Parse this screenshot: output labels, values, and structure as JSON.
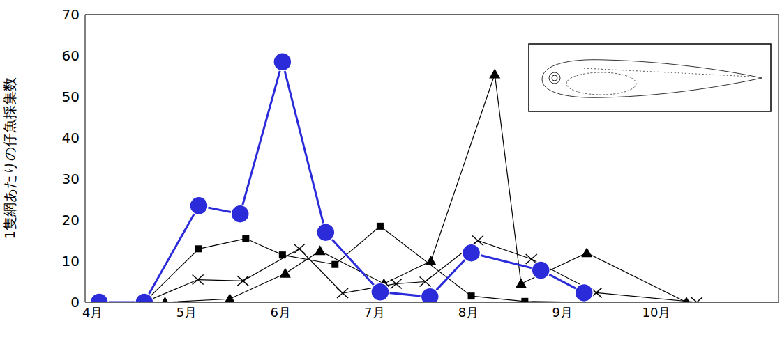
{
  "chart_data": {
    "type": "line",
    "y_label": "1隻網あたりの仔魚採集数",
    "xlim": [
      3.92,
      11.3
    ],
    "xticks": [
      {
        "value": 4,
        "label": "4月"
      },
      {
        "value": 5,
        "label": "5月"
      },
      {
        "value": 6,
        "label": "6月"
      },
      {
        "value": 7,
        "label": "7月"
      },
      {
        "value": 8,
        "label": "8月"
      },
      {
        "value": 9,
        "label": "9月"
      },
      {
        "value": 10,
        "label": "10月"
      }
    ],
    "ylim": [
      0,
      70
    ],
    "yticks": [
      0,
      10,
      20,
      30,
      40,
      50,
      60,
      70
    ],
    "grid": true,
    "series": [
      {
        "color": "#2b2bd9",
        "marker": "circle",
        "x": [
          4.07,
          4.55,
          5.13,
          5.57,
          6.02,
          6.48,
          7.06,
          7.59,
          8.03,
          8.77,
          9.23
        ],
        "values": [
          0,
          0,
          23.5,
          21.5,
          58.5,
          17,
          2.5,
          1.3,
          12,
          7.8,
          2.3
        ]
      },
      {
        "color": "#000000",
        "marker": "square",
        "x": [
          4.55,
          5.13,
          5.63,
          6.02,
          6.58,
          7.06,
          8.03,
          8.6,
          9.23
        ],
        "values": [
          0,
          13,
          15.5,
          11.5,
          9.2,
          18.5,
          1.5,
          0.2,
          0
        ]
      },
      {
        "color": "#000000",
        "marker": "cross",
        "x": [
          4.55,
          5.12,
          5.6,
          6.2,
          6.66,
          7.23,
          7.54,
          8.1,
          8.67,
          9.36,
          10.43
        ],
        "values": [
          0,
          5.5,
          5.2,
          13,
          2.2,
          4.5,
          5,
          15,
          10.5,
          2.3,
          0
        ]
      },
      {
        "color": "#000000",
        "marker": "triangle",
        "x": [
          4.55,
          4.77,
          5.46,
          6.05,
          6.42,
          7.1,
          7.6,
          8.28,
          8.56,
          9.26,
          10.32
        ],
        "values": [
          0,
          0,
          0.8,
          7,
          12.5,
          4.5,
          10,
          55.5,
          4.5,
          12,
          0
        ]
      }
    ]
  }
}
